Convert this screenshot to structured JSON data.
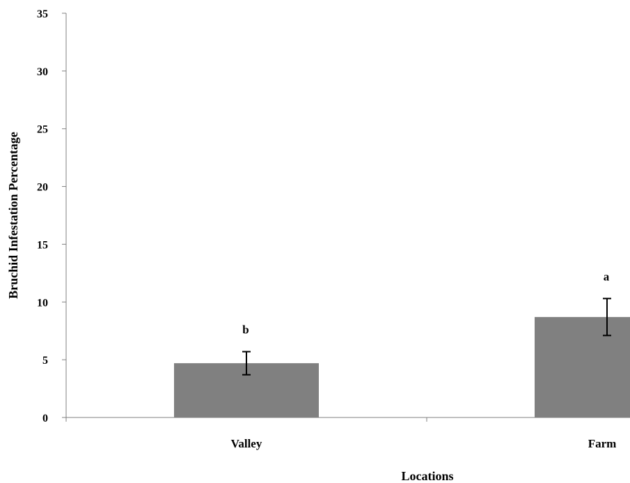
{
  "chart_data": {
    "type": "bar",
    "title": "",
    "xlabel": "Locations",
    "ylabel": "Bruchid Infestation Percentage",
    "ylim": [
      0,
      35
    ],
    "yticks": [
      "0",
      "5",
      "10",
      "15",
      "20",
      "25",
      "30",
      "35"
    ],
    "ytick_values": [
      0,
      5,
      10,
      15,
      20,
      25,
      30,
      35
    ],
    "categories": [
      "Valley",
      "Farm"
    ],
    "values": [
      4.7,
      8.7
    ],
    "errors": [
      1.0,
      1.6
    ],
    "significance_letters": [
      "b",
      "a"
    ],
    "bar_color": "#808080",
    "grid": false,
    "legend": "none"
  }
}
